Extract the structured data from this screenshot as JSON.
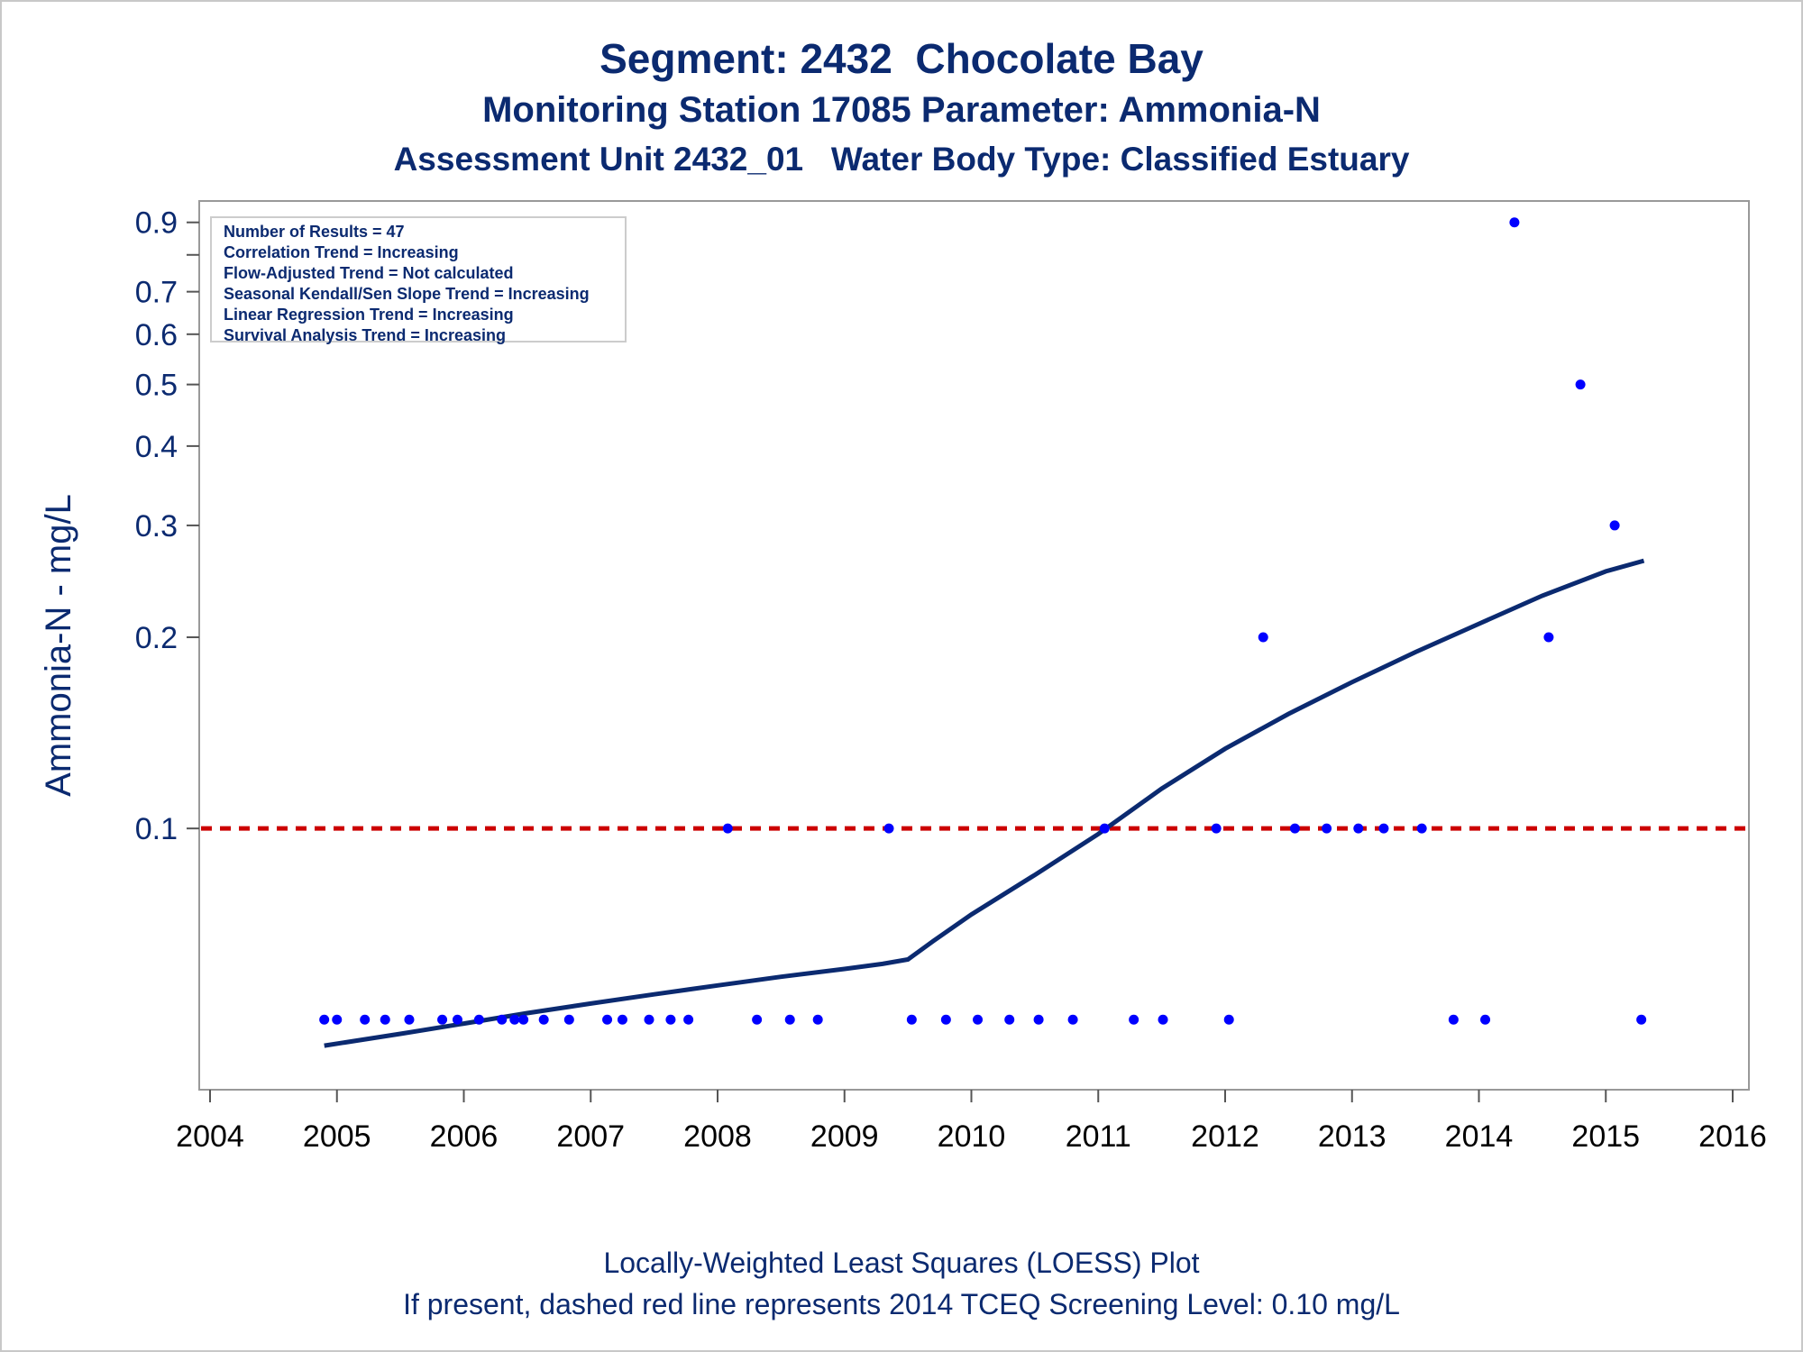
{
  "titles": {
    "line1": "Segment: 2432  Chocolate Bay",
    "line2": "Monitoring Station 17085 Parameter: Ammonia-N",
    "line3": "Assessment Unit 2432_01   Water Body Type: Classified Estuary"
  },
  "footer": {
    "line1": "Locally-Weighted Least Squares (LOESS) Plot",
    "line2": "If present, dashed red line represents 2014 TCEQ Screening Level: 0.10 mg/L"
  },
  "legend": [
    "Number of Results = 47",
    "Correlation Trend = Increasing",
    "Flow-Adjusted Trend = Not calculated",
    "Seasonal Kendall/Sen Slope Trend = Increasing",
    "Linear Regression Trend = Increasing",
    "Survival Analysis Trend = Increasing"
  ],
  "colors": {
    "points": "#0000ff",
    "loess": "#0b2a70",
    "screening": "#cc0000",
    "text": "#0b2a70"
  },
  "chart_data": {
    "type": "scatter",
    "ylabel": "Ammonia-N - mg/L",
    "xlabel": "",
    "y_scale": "log",
    "xlim": [
      2004,
      2016
    ],
    "ylim": [
      0.041,
      0.92
    ],
    "x_ticks": [
      "2004",
      "2005",
      "2006",
      "2007",
      "2008",
      "2009",
      "2010",
      "2011",
      "2012",
      "2013",
      "2014",
      "2015",
      "2016"
    ],
    "y_ticks": [
      {
        "value": 0.1,
        "label": "0.1"
      },
      {
        "value": 0.2,
        "label": "0.2"
      },
      {
        "value": 0.3,
        "label": "0.3"
      },
      {
        "value": 0.4,
        "label": "0.4"
      },
      {
        "value": 0.5,
        "label": "0.5"
      },
      {
        "value": 0.6,
        "label": "0.6"
      },
      {
        "value": 0.7,
        "label": "0.7"
      },
      {
        "value": 0.8,
        "label": ""
      },
      {
        "value": 0.9,
        "label": "0.9"
      }
    ],
    "screening_level": 0.1,
    "points": {
      "x": [
        2004.9,
        2005.0,
        2005.22,
        2005.38,
        2005.57,
        2005.83,
        2005.95,
        2006.12,
        2006.3,
        2006.4,
        2006.47,
        2006.63,
        2006.83,
        2007.13,
        2007.25,
        2007.46,
        2007.63,
        2007.77,
        2008.08,
        2008.31,
        2008.57,
        2008.79,
        2009.35,
        2009.53,
        2009.8,
        2010.05,
        2010.3,
        2010.53,
        2010.8,
        2011.05,
        2011.28,
        2011.51,
        2011.93,
        2012.03,
        2012.3,
        2012.55,
        2012.8,
        2013.05,
        2013.25,
        2013.55,
        2013.8,
        2014.05,
        2014.28,
        2014.55,
        2014.8,
        2015.07,
        2015.28
      ],
      "y": [
        0.05,
        0.05,
        0.05,
        0.05,
        0.05,
        0.05,
        0.05,
        0.05,
        0.05,
        0.05,
        0.05,
        0.05,
        0.05,
        0.05,
        0.05,
        0.05,
        0.05,
        0.05,
        0.1,
        0.05,
        0.05,
        0.05,
        0.1,
        0.05,
        0.05,
        0.05,
        0.05,
        0.05,
        0.05,
        0.1,
        0.05,
        0.05,
        0.1,
        0.05,
        0.2,
        0.1,
        0.1,
        0.1,
        0.1,
        0.1,
        0.05,
        0.05,
        0.9,
        0.2,
        0.5,
        0.3,
        0.05
      ]
    },
    "loess": {
      "x": [
        2004.9,
        2005.5,
        2006.0,
        2006.5,
        2007.0,
        2007.5,
        2008.0,
        2008.5,
        2009.0,
        2009.3,
        2009.5,
        2009.7,
        2010.0,
        2010.5,
        2011.0,
        2011.5,
        2012.0,
        2012.5,
        2013.0,
        2013.5,
        2014.0,
        2014.5,
        2015.0,
        2015.3
      ],
      "y": [
        0.0455,
        0.0475,
        0.0493,
        0.0512,
        0.053,
        0.0548,
        0.0566,
        0.0584,
        0.0601,
        0.0612,
        0.0622,
        0.0665,
        0.0732,
        0.0845,
        0.098,
        0.1155,
        0.1335,
        0.1515,
        0.17,
        0.1895,
        0.21,
        0.2325,
        0.254,
        0.264
      ]
    }
  }
}
